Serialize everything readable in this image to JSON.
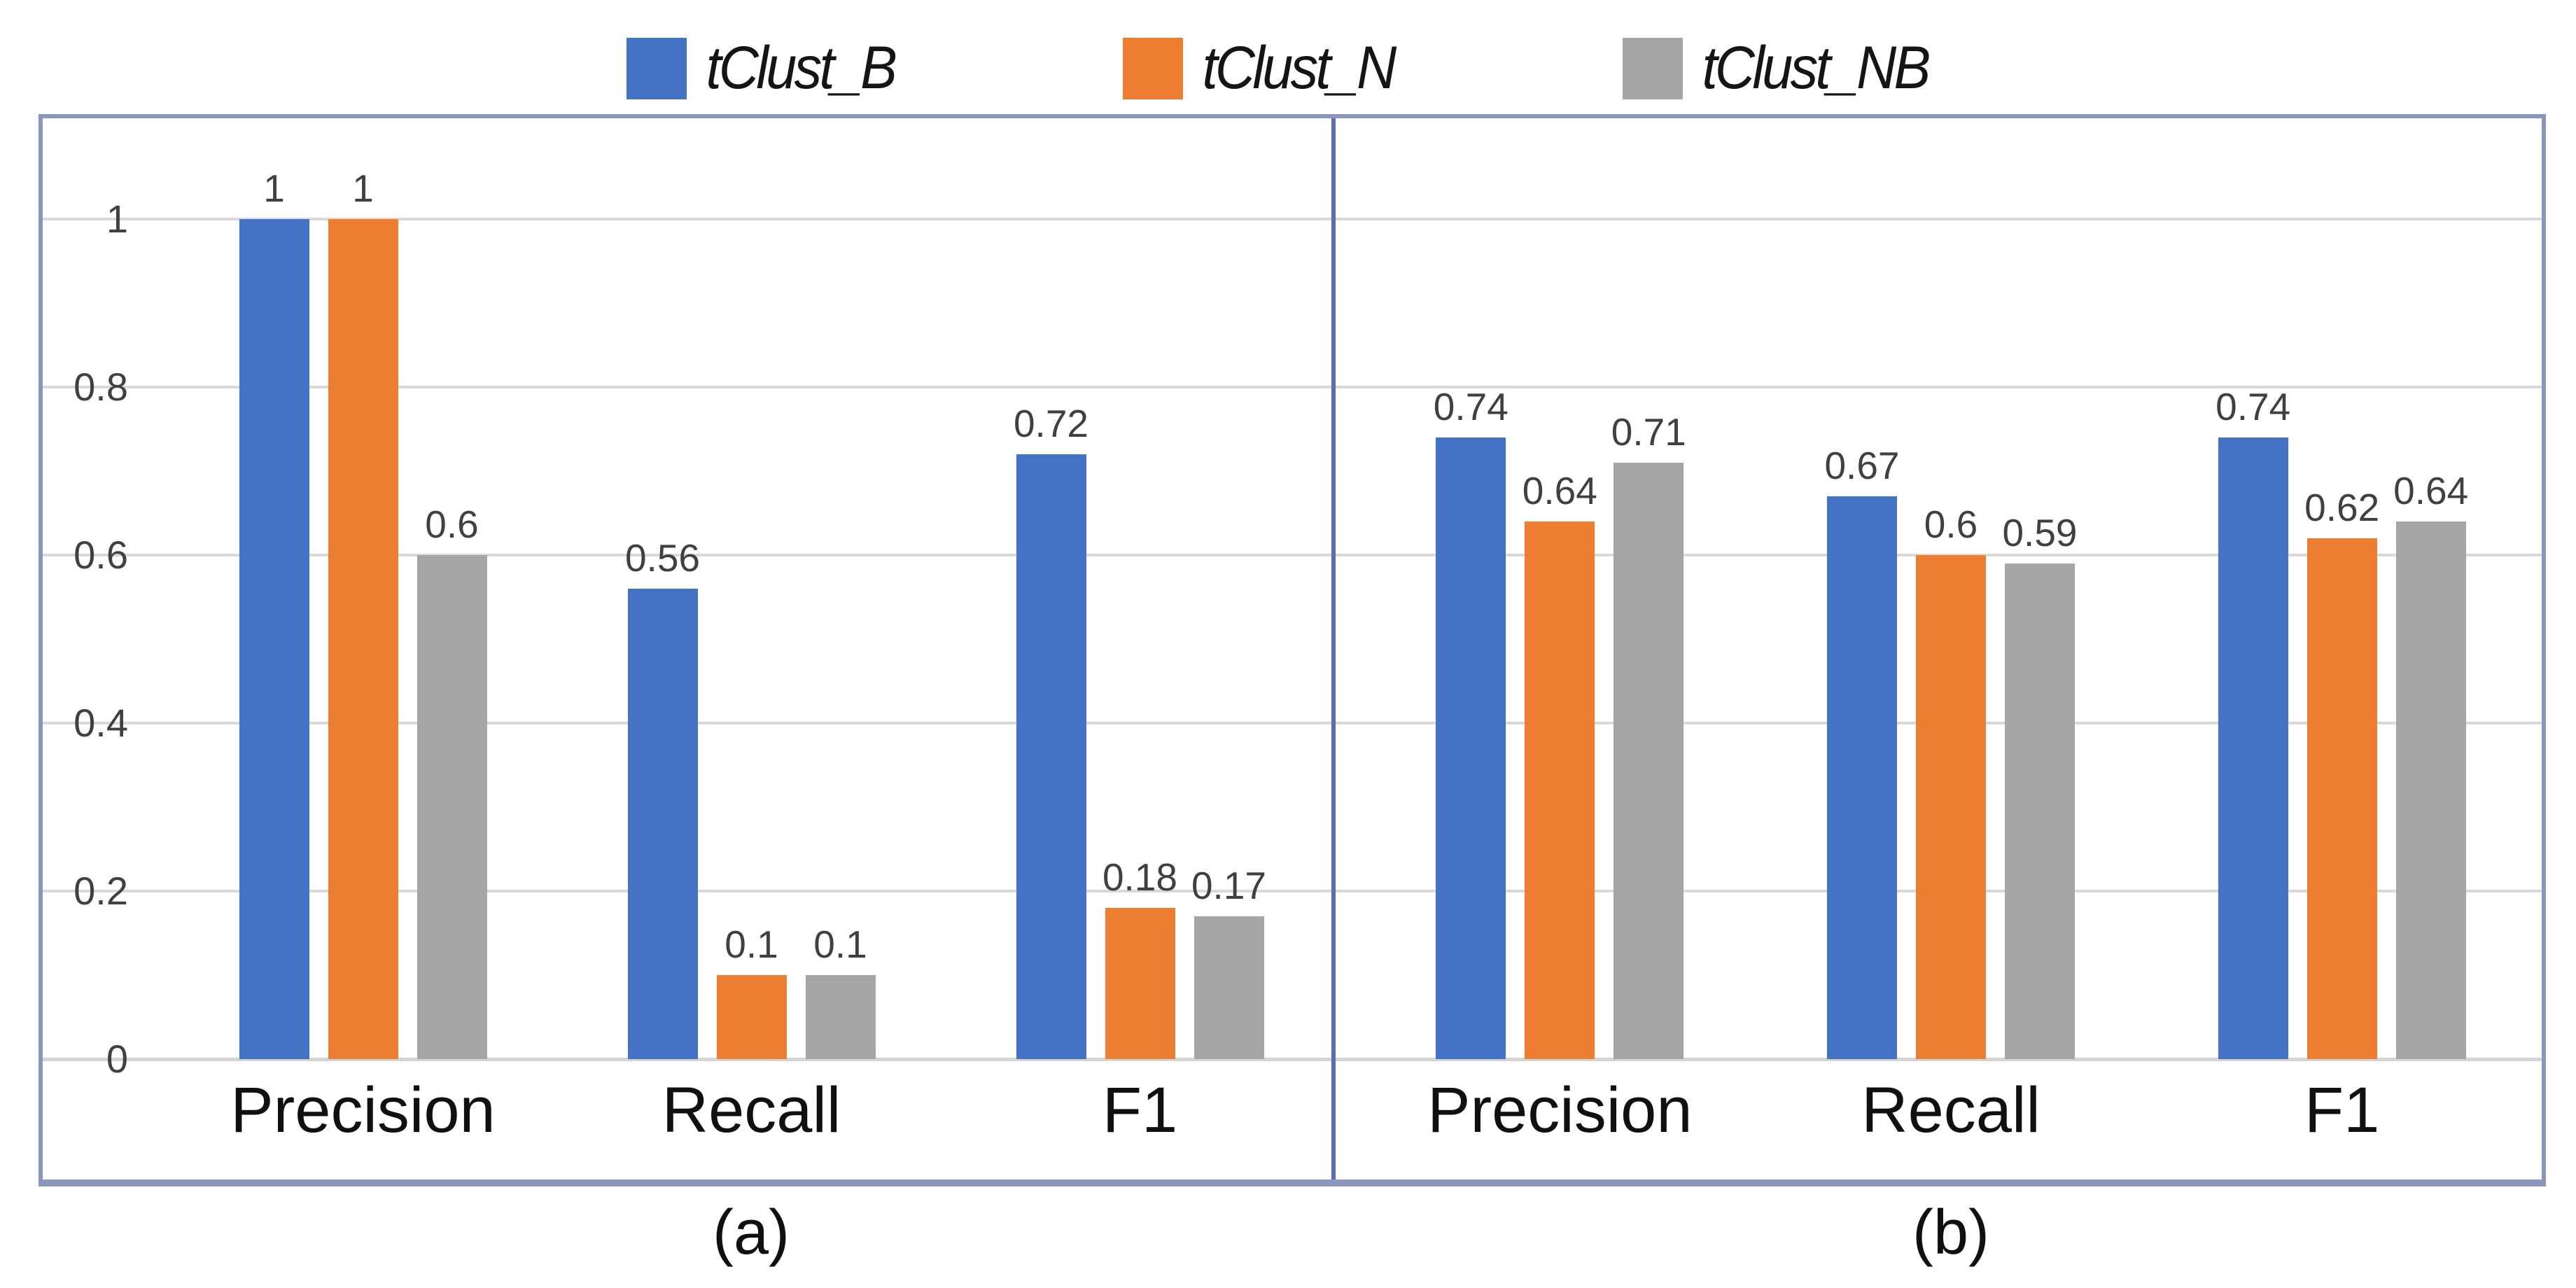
{
  "chart_data": {
    "type": "bar",
    "title": "",
    "legend_position": "top",
    "grid": true,
    "ylim": [
      0,
      1.125
    ],
    "y_ticks": [
      {
        "value": 1,
        "label": "1"
      },
      {
        "value": 0.8,
        "label": "0.8"
      },
      {
        "value": 0.6,
        "label": "0.6"
      },
      {
        "value": 0.4,
        "label": "0.4"
      },
      {
        "value": 0.2,
        "label": "0.2"
      },
      {
        "value": 0,
        "label": "0"
      }
    ],
    "legend": [
      {
        "name": "tClust_B",
        "color": "#4472C4"
      },
      {
        "name": "tClust_N",
        "color": "#ED7D31"
      },
      {
        "name": "tClust_NB",
        "color": "#A5A5A5"
      }
    ],
    "panels": [
      {
        "caption": "(a)",
        "categories": [
          "Precision",
          "Recall",
          "F1"
        ],
        "series": [
          {
            "name": "tClust_B",
            "color": "#4472C4",
            "values": [
              1,
              0.56,
              0.72
            ],
            "labels": [
              "1",
              "0.56",
              "0.72"
            ]
          },
          {
            "name": "tClust_N",
            "color": "#ED7D31",
            "values": [
              1,
              0.1,
              0.18
            ],
            "labels": [
              "1",
              "0.1",
              "0.18"
            ]
          },
          {
            "name": "tClust_NB",
            "color": "#A5A5A5",
            "values": [
              0.6,
              0.1,
              0.17
            ],
            "labels": [
              "0.6",
              "0.1",
              "0.17"
            ]
          }
        ]
      },
      {
        "caption": "(b)",
        "categories": [
          "Precision",
          "Recall",
          "F1"
        ],
        "series": [
          {
            "name": "tClust_B",
            "color": "#4472C4",
            "values": [
              0.74,
              0.67,
              0.74
            ],
            "labels": [
              "0.74",
              "0.67",
              "0.74"
            ]
          },
          {
            "name": "tClust_N",
            "color": "#ED7D31",
            "values": [
              0.64,
              0.6,
              0.62
            ],
            "labels": [
              "0.64",
              "0.6",
              "0.62"
            ]
          },
          {
            "name": "tClust_NB",
            "color": "#A5A5A5",
            "values": [
              0.71,
              0.59,
              0.64
            ],
            "labels": [
              "0.71",
              "0.59",
              "0.64"
            ]
          }
        ]
      }
    ],
    "colors": {
      "background": "#FFFFFF",
      "bar_blue": "#4472C4",
      "bar_orange": "#ED7D31",
      "bar_gray": "#A5A5A5",
      "gridline": "#D9D9D9",
      "outer_border": "#8A96BE",
      "panel_divider": "#5D6CAE",
      "tick_label": "#404040",
      "data_label": "#404040",
      "category_label": "#101010"
    }
  }
}
